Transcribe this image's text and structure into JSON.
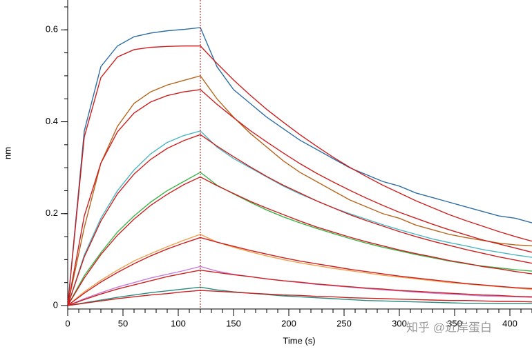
{
  "chart_data": {
    "type": "line",
    "xlabel": "Time (s)",
    "ylabel": "nm",
    "watermark": "知乎 @近岸蛋白",
    "xlim": [
      0,
      420
    ],
    "xticks": [
      0,
      50,
      100,
      150,
      200,
      250,
      300,
      350,
      400
    ],
    "xminor_step": 10,
    "ylim": [
      0,
      0.665
    ],
    "yticks": [
      0,
      0.2,
      0.4,
      0.6
    ],
    "yminor_step": 0.05,
    "vline": {
      "x": 120,
      "color": "#c00000"
    },
    "x": [
      0,
      15,
      30,
      45,
      60,
      75,
      90,
      105,
      120,
      135,
      150,
      165,
      180,
      195,
      210,
      225,
      240,
      255,
      270,
      285,
      300,
      315,
      330,
      345,
      360,
      375,
      390,
      405,
      420
    ],
    "series": [
      {
        "color": "#2e6da4",
        "values": [
          0,
          0.38,
          0.52,
          0.565,
          0.585,
          0.593,
          0.598,
          0.601,
          0.605,
          0.52,
          0.47,
          0.44,
          0.41,
          0.385,
          0.36,
          0.34,
          0.32,
          0.3,
          0.285,
          0.27,
          0.26,
          0.245,
          0.235,
          0.225,
          0.215,
          0.205,
          0.195,
          0.19,
          0.18
        ]
      },
      {
        "color": "#b5651d",
        "values": [
          0,
          0.17,
          0.31,
          0.39,
          0.44,
          0.465,
          0.48,
          0.49,
          0.5,
          0.45,
          0.41,
          0.375,
          0.345,
          0.315,
          0.29,
          0.27,
          0.25,
          0.23,
          0.215,
          0.2,
          0.19,
          0.175,
          0.165,
          0.155,
          0.148,
          0.142,
          0.136,
          0.132,
          0.13
        ]
      },
      {
        "color": "#4bb5c1",
        "values": [
          0,
          0.11,
          0.19,
          0.25,
          0.295,
          0.33,
          0.355,
          0.37,
          0.38,
          0.345,
          0.32,
          0.3,
          0.28,
          0.26,
          0.243,
          0.228,
          0.213,
          0.2,
          0.188,
          0.176,
          0.165,
          0.155,
          0.145,
          0.137,
          0.13,
          0.122,
          0.116,
          0.11,
          0.105
        ]
      },
      {
        "color": "#3cb34a",
        "values": [
          0,
          0.065,
          0.115,
          0.16,
          0.195,
          0.225,
          0.25,
          0.27,
          0.29,
          0.262,
          0.243,
          0.225,
          0.208,
          0.193,
          0.18,
          0.168,
          0.157,
          0.146,
          0.136,
          0.127,
          0.119,
          0.111,
          0.104,
          0.097,
          0.091,
          0.086,
          0.082,
          0.078,
          0.075
        ]
      },
      {
        "color": "#f0a050",
        "values": [
          0,
          0.03,
          0.055,
          0.077,
          0.097,
          0.113,
          0.128,
          0.142,
          0.155,
          0.138,
          0.127,
          0.117,
          0.108,
          0.1,
          0.093,
          0.087,
          0.081,
          0.076,
          0.071,
          0.066,
          0.062,
          0.058,
          0.054,
          0.05,
          0.047,
          0.044,
          0.041,
          0.038,
          0.035
        ]
      },
      {
        "color": "#c77dd8",
        "values": [
          0,
          0.015,
          0.028,
          0.04,
          0.05,
          0.06,
          0.068,
          0.076,
          0.085,
          0.075,
          0.068,
          0.063,
          0.058,
          0.054,
          0.05,
          0.046,
          0.043,
          0.04,
          0.037,
          0.034,
          0.032,
          0.029,
          0.027,
          0.025,
          0.023,
          0.021,
          0.02,
          0.019,
          0.018
        ]
      },
      {
        "color": "#2a8a7e",
        "values": [
          0,
          0.006,
          0.012,
          0.018,
          0.023,
          0.028,
          0.032,
          0.036,
          0.04,
          0.034,
          0.03,
          0.027,
          0.024,
          0.021,
          0.019,
          0.017,
          0.015,
          0.013,
          0.011,
          0.01,
          0.009,
          0.008,
          0.007,
          0.006,
          0.005,
          0.005,
          0.004,
          0.004,
          0.004
        ]
      },
      {
        "color": "#cc1f1f",
        "values": [
          0,
          0.367,
          0.496,
          0.541,
          0.557,
          0.562,
          0.564,
          0.565,
          0.565,
          0.527,
          0.491,
          0.458,
          0.427,
          0.399,
          0.372,
          0.347,
          0.323,
          0.301,
          0.281,
          0.262,
          0.245,
          0.228,
          0.213,
          0.198,
          0.185,
          0.173,
          0.161,
          0.15,
          0.14
        ]
      },
      {
        "color": "#cc1f1f",
        "values": [
          0,
          0.195,
          0.31,
          0.378,
          0.419,
          0.443,
          0.457,
          0.465,
          0.47,
          0.438,
          0.409,
          0.381,
          0.356,
          0.332,
          0.309,
          0.288,
          0.269,
          0.251,
          0.234,
          0.218,
          0.203,
          0.19,
          0.177,
          0.165,
          0.154,
          0.143,
          0.134,
          0.125,
          0.116
        ]
      },
      {
        "color": "#cc1f1f",
        "values": [
          0,
          0.106,
          0.184,
          0.243,
          0.286,
          0.318,
          0.342,
          0.359,
          0.372,
          0.347,
          0.324,
          0.302,
          0.281,
          0.262,
          0.245,
          0.228,
          0.213,
          0.198,
          0.185,
          0.173,
          0.161,
          0.15,
          0.14,
          0.131,
          0.122,
          0.114,
          0.106,
          0.099,
          0.092
        ]
      },
      {
        "color": "#cc1f1f",
        "values": [
          0,
          0.06,
          0.111,
          0.153,
          0.188,
          0.218,
          0.242,
          0.263,
          0.28,
          0.261,
          0.244,
          0.227,
          0.212,
          0.198,
          0.184,
          0.171,
          0.16,
          0.149,
          0.139,
          0.13,
          0.121,
          0.113,
          0.106,
          0.098,
          0.092,
          0.085,
          0.08,
          0.074,
          0.069
        ]
      },
      {
        "color": "#cc1f1f",
        "values": [
          0,
          0.027,
          0.051,
          0.072,
          0.091,
          0.108,
          0.123,
          0.136,
          0.148,
          0.138,
          0.129,
          0.12,
          0.112,
          0.104,
          0.097,
          0.091,
          0.085,
          0.079,
          0.074,
          0.069,
          0.064,
          0.06,
          0.056,
          0.052,
          0.048,
          0.045,
          0.042,
          0.039,
          0.037
        ]
      },
      {
        "color": "#cc1f1f",
        "values": [
          0,
          0.013,
          0.025,
          0.036,
          0.045,
          0.054,
          0.063,
          0.07,
          0.077,
          0.072,
          0.067,
          0.063,
          0.058,
          0.054,
          0.051,
          0.047,
          0.044,
          0.041,
          0.038,
          0.036,
          0.033,
          0.031,
          0.029,
          0.027,
          0.025,
          0.023,
          0.022,
          0.02,
          0.019
        ]
      },
      {
        "color": "#cc1f1f",
        "values": [
          0,
          0.005,
          0.01,
          0.015,
          0.019,
          0.023,
          0.026,
          0.03,
          0.033,
          0.031,
          0.029,
          0.027,
          0.025,
          0.023,
          0.022,
          0.02,
          0.019,
          0.017,
          0.016,
          0.015,
          0.014,
          0.013,
          0.012,
          0.011,
          0.011,
          0.01,
          0.009,
          0.009,
          0.008
        ]
      }
    ]
  }
}
